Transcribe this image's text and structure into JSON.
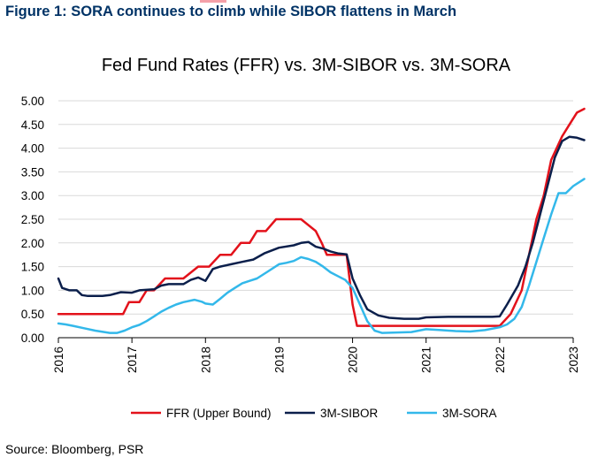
{
  "figure_heading": "Figure 1: SORA continues to climb while SIBOR flattens in March",
  "source": "Source: Bloomberg, PSR",
  "colors": {
    "heading": "#003366",
    "ffr": "#e3121b",
    "sibor": "#0b1f4b",
    "sora": "#33b8ea",
    "accent": "#f4a0a8"
  },
  "chart_data": {
    "type": "line",
    "title": "Fed Fund Rates (FFR) vs. 3M-SIBOR vs. 3M-SORA",
    "xlabel": "",
    "ylabel": "",
    "xlim": [
      2016,
      2023
    ],
    "ylim": [
      0,
      5
    ],
    "x_ticks": [
      "2016",
      "2017",
      "2018",
      "2019",
      "2020",
      "2021",
      "2022",
      "2023"
    ],
    "y_ticks": [
      "0.00",
      "0.50",
      "1.00",
      "1.50",
      "2.00",
      "2.50",
      "3.00",
      "3.50",
      "4.00",
      "4.50",
      "5.00"
    ],
    "grid": "horizontal",
    "legend_position": "bottom",
    "series": [
      {
        "name": "FFR (Upper Bound)",
        "color": "#e3121b",
        "points": [
          [
            2016.0,
            0.5
          ],
          [
            2016.5,
            0.5
          ],
          [
            2016.88,
            0.5
          ],
          [
            2016.96,
            0.75
          ],
          [
            2017.1,
            0.75
          ],
          [
            2017.2,
            1.0
          ],
          [
            2017.3,
            1.0
          ],
          [
            2017.45,
            1.25
          ],
          [
            2017.7,
            1.25
          ],
          [
            2017.9,
            1.5
          ],
          [
            2018.05,
            1.5
          ],
          [
            2018.2,
            1.75
          ],
          [
            2018.35,
            1.75
          ],
          [
            2018.48,
            2.0
          ],
          [
            2018.6,
            2.0
          ],
          [
            2018.7,
            2.25
          ],
          [
            2018.82,
            2.25
          ],
          [
            2018.96,
            2.5
          ],
          [
            2019.2,
            2.5
          ],
          [
            2019.3,
            2.5
          ],
          [
            2019.5,
            2.25
          ],
          [
            2019.58,
            2.0
          ],
          [
            2019.65,
            1.75
          ],
          [
            2019.8,
            1.75
          ],
          [
            2019.92,
            1.75
          ],
          [
            2020.0,
            0.7
          ],
          [
            2020.06,
            0.25
          ],
          [
            2020.5,
            0.25
          ],
          [
            2021.0,
            0.25
          ],
          [
            2021.5,
            0.25
          ],
          [
            2021.9,
            0.25
          ],
          [
            2022.0,
            0.25
          ],
          [
            2022.15,
            0.5
          ],
          [
            2022.3,
            1.0
          ],
          [
            2022.4,
            1.75
          ],
          [
            2022.5,
            2.5
          ],
          [
            2022.6,
            3.0
          ],
          [
            2022.7,
            3.75
          ],
          [
            2022.85,
            4.25
          ],
          [
            2022.95,
            4.5
          ],
          [
            2023.05,
            4.75
          ],
          [
            2023.15,
            4.83
          ]
        ]
      },
      {
        "name": "3M-SIBOR",
        "color": "#0b1f4b",
        "points": [
          [
            2016.0,
            1.25
          ],
          [
            2016.05,
            1.05
          ],
          [
            2016.15,
            1.0
          ],
          [
            2016.25,
            1.0
          ],
          [
            2016.32,
            0.9
          ],
          [
            2016.4,
            0.88
          ],
          [
            2016.6,
            0.88
          ],
          [
            2016.7,
            0.9
          ],
          [
            2016.85,
            0.96
          ],
          [
            2017.0,
            0.95
          ],
          [
            2017.1,
            1.0
          ],
          [
            2017.3,
            1.02
          ],
          [
            2017.4,
            1.1
          ],
          [
            2017.5,
            1.13
          ],
          [
            2017.7,
            1.13
          ],
          [
            2017.8,
            1.22
          ],
          [
            2017.9,
            1.27
          ],
          [
            2018.0,
            1.2
          ],
          [
            2018.1,
            1.45
          ],
          [
            2018.2,
            1.5
          ],
          [
            2018.35,
            1.55
          ],
          [
            2018.5,
            1.6
          ],
          [
            2018.65,
            1.65
          ],
          [
            2018.8,
            1.78
          ],
          [
            2019.0,
            1.9
          ],
          [
            2019.2,
            1.95
          ],
          [
            2019.3,
            2.0
          ],
          [
            2019.4,
            2.02
          ],
          [
            2019.5,
            1.92
          ],
          [
            2019.6,
            1.88
          ],
          [
            2019.7,
            1.82
          ],
          [
            2019.8,
            1.78
          ],
          [
            2019.92,
            1.76
          ],
          [
            2020.0,
            1.25
          ],
          [
            2020.1,
            0.9
          ],
          [
            2020.2,
            0.6
          ],
          [
            2020.35,
            0.47
          ],
          [
            2020.5,
            0.42
          ],
          [
            2020.7,
            0.4
          ],
          [
            2020.9,
            0.4
          ],
          [
            2021.0,
            0.43
          ],
          [
            2021.3,
            0.44
          ],
          [
            2021.6,
            0.44
          ],
          [
            2021.9,
            0.44
          ],
          [
            2022.0,
            0.45
          ],
          [
            2022.1,
            0.7
          ],
          [
            2022.25,
            1.1
          ],
          [
            2022.35,
            1.5
          ],
          [
            2022.45,
            2.0
          ],
          [
            2022.55,
            2.6
          ],
          [
            2022.65,
            3.2
          ],
          [
            2022.75,
            3.8
          ],
          [
            2022.85,
            4.15
          ],
          [
            2022.95,
            4.24
          ],
          [
            2023.05,
            4.22
          ],
          [
            2023.15,
            4.17
          ]
        ]
      },
      {
        "name": "3M-SORA",
        "color": "#33b8ea",
        "points": [
          [
            2016.0,
            0.3
          ],
          [
            2016.1,
            0.28
          ],
          [
            2016.2,
            0.25
          ],
          [
            2016.35,
            0.2
          ],
          [
            2016.5,
            0.15
          ],
          [
            2016.7,
            0.1
          ],
          [
            2016.8,
            0.1
          ],
          [
            2016.9,
            0.15
          ],
          [
            2017.0,
            0.22
          ],
          [
            2017.1,
            0.27
          ],
          [
            2017.2,
            0.35
          ],
          [
            2017.3,
            0.45
          ],
          [
            2017.4,
            0.55
          ],
          [
            2017.5,
            0.63
          ],
          [
            2017.6,
            0.7
          ],
          [
            2017.7,
            0.75
          ],
          [
            2017.85,
            0.8
          ],
          [
            2017.95,
            0.76
          ],
          [
            2018.0,
            0.72
          ],
          [
            2018.1,
            0.7
          ],
          [
            2018.2,
            0.82
          ],
          [
            2018.3,
            0.95
          ],
          [
            2018.4,
            1.05
          ],
          [
            2018.5,
            1.15
          ],
          [
            2018.6,
            1.2
          ],
          [
            2018.7,
            1.25
          ],
          [
            2018.85,
            1.4
          ],
          [
            2019.0,
            1.55
          ],
          [
            2019.1,
            1.58
          ],
          [
            2019.2,
            1.62
          ],
          [
            2019.3,
            1.7
          ],
          [
            2019.4,
            1.66
          ],
          [
            2019.5,
            1.6
          ],
          [
            2019.6,
            1.5
          ],
          [
            2019.7,
            1.38
          ],
          [
            2019.8,
            1.3
          ],
          [
            2019.9,
            1.22
          ],
          [
            2020.0,
            1.05
          ],
          [
            2020.1,
            0.7
          ],
          [
            2020.2,
            0.35
          ],
          [
            2020.3,
            0.15
          ],
          [
            2020.4,
            0.1
          ],
          [
            2020.6,
            0.11
          ],
          [
            2020.8,
            0.12
          ],
          [
            2021.0,
            0.18
          ],
          [
            2021.2,
            0.16
          ],
          [
            2021.4,
            0.14
          ],
          [
            2021.6,
            0.13
          ],
          [
            2021.8,
            0.16
          ],
          [
            2022.0,
            0.22
          ],
          [
            2022.1,
            0.28
          ],
          [
            2022.2,
            0.4
          ],
          [
            2022.3,
            0.65
          ],
          [
            2022.4,
            1.1
          ],
          [
            2022.5,
            1.6
          ],
          [
            2022.6,
            2.1
          ],
          [
            2022.7,
            2.6
          ],
          [
            2022.8,
            3.05
          ],
          [
            2022.9,
            3.05
          ],
          [
            2023.0,
            3.2
          ],
          [
            2023.15,
            3.35
          ]
        ]
      }
    ]
  }
}
